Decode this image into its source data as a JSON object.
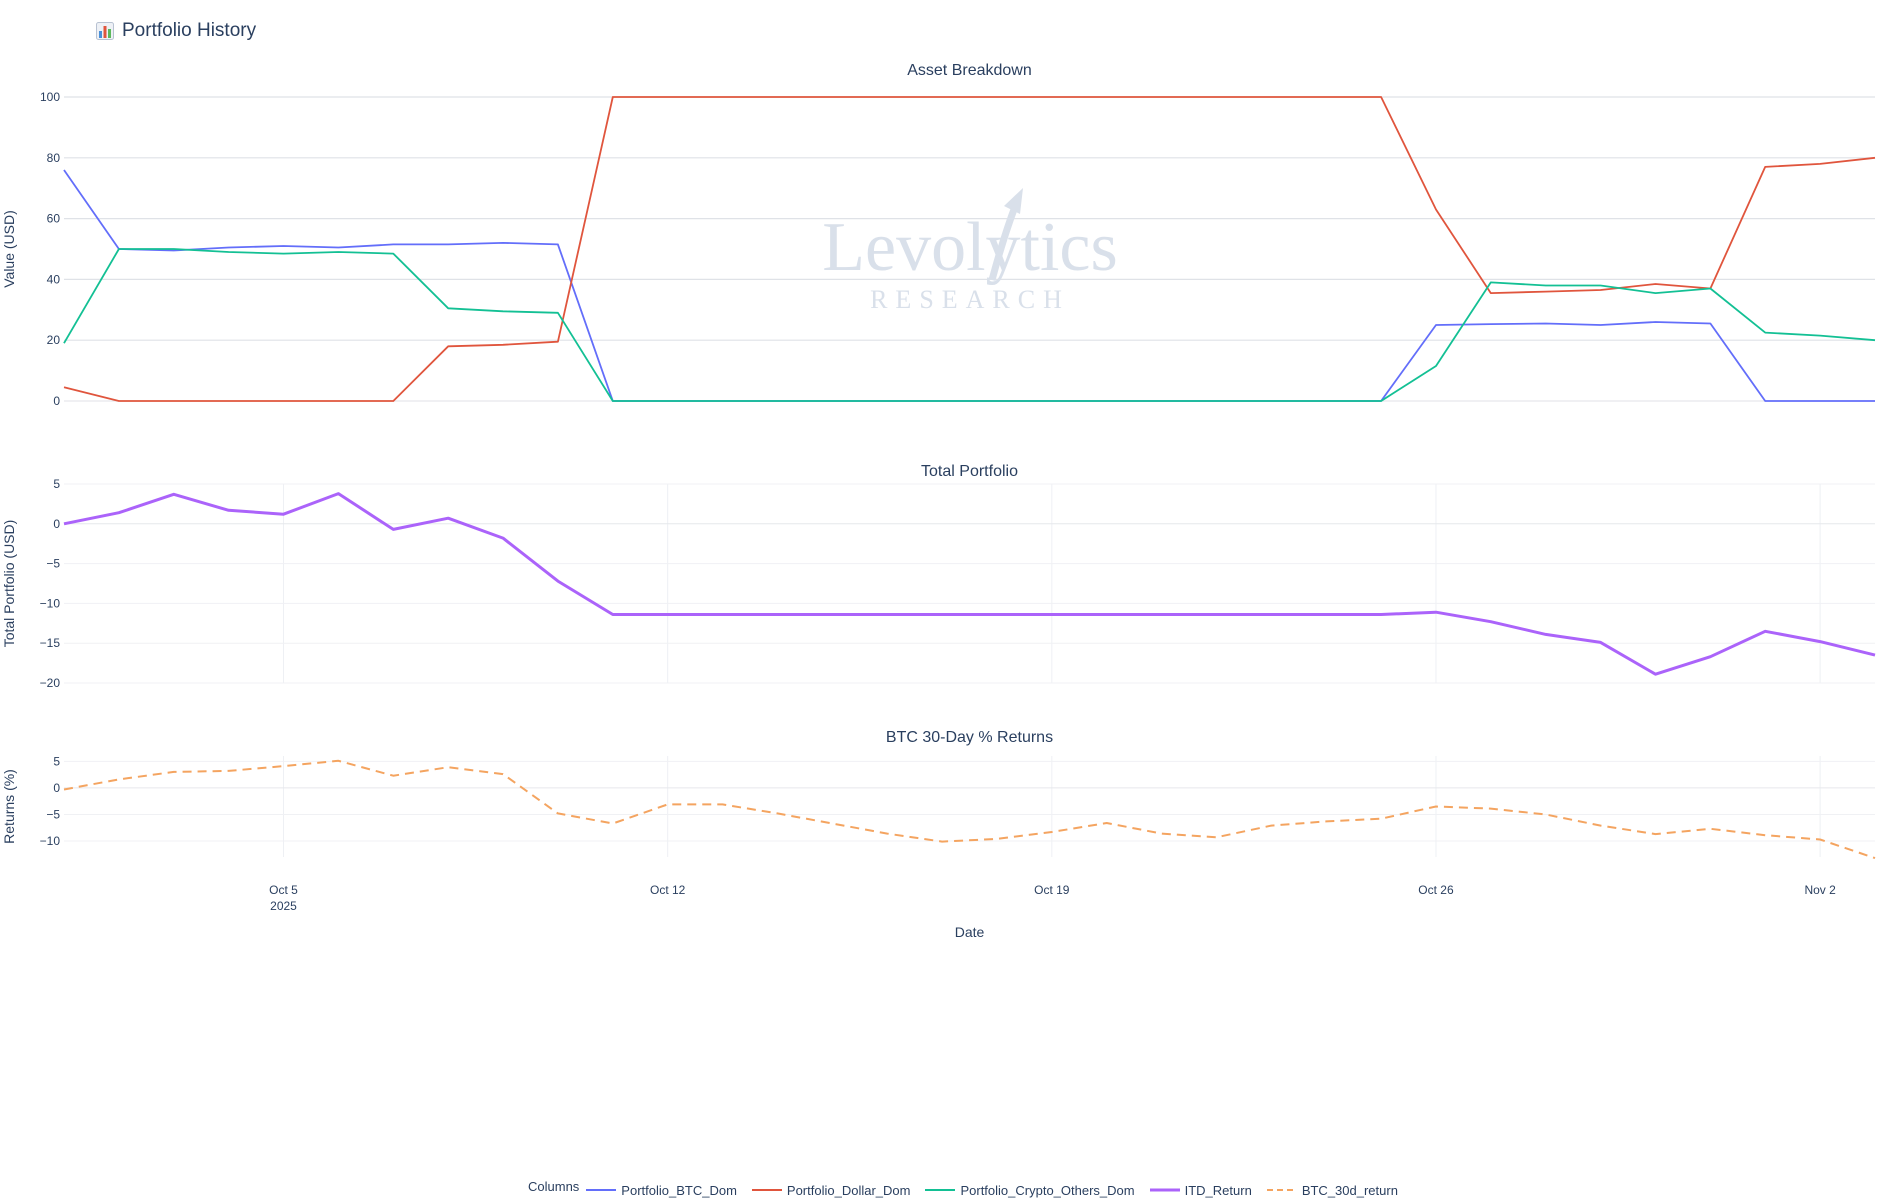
{
  "page": {
    "title": "Portfolio History",
    "icon": "bar-chart-icon"
  },
  "watermark": {
    "name": "Levolytics",
    "tagline": "RESEARCH"
  },
  "legend": {
    "title": "Columns"
  },
  "colors": {
    "Portfolio_BTC_Dom": "#636efa",
    "Portfolio_Dollar_Dom": "#e0553d",
    "Portfolio_Crypto_Others_Dom": "#13c094",
    "ITD_Return": "#ab63fa",
    "BTC_30d_return": "#f4a460"
  },
  "chart_data": [
    {
      "type": "line",
      "title": "Asset Breakdown",
      "ylabel": "Value (USD)",
      "ylim": [
        0,
        100
      ],
      "yticks": [
        0,
        20,
        40,
        60,
        80,
        100
      ],
      "x": [
        "2025-10-01",
        "2025-10-02",
        "2025-10-03",
        "2025-10-04",
        "2025-10-05",
        "2025-10-06",
        "2025-10-07",
        "2025-10-08",
        "2025-10-09",
        "2025-10-10",
        "2025-10-11",
        "2025-10-12",
        "2025-10-13",
        "2025-10-14",
        "2025-10-15",
        "2025-10-16",
        "2025-10-17",
        "2025-10-18",
        "2025-10-19",
        "2025-10-20",
        "2025-10-21",
        "2025-10-22",
        "2025-10-23",
        "2025-10-24",
        "2025-10-25",
        "2025-10-26",
        "2025-10-27",
        "2025-10-28",
        "2025-10-29",
        "2025-10-30",
        "2025-10-31",
        "2025-11-01",
        "2025-11-02",
        "2025-11-03"
      ],
      "series": [
        {
          "name": "Portfolio_BTC_Dom",
          "dash": "solid",
          "width": 1.8,
          "values": [
            76,
            50,
            49.5,
            50.5,
            51,
            50.5,
            51.5,
            51.5,
            52,
            51.5,
            0,
            0,
            0,
            0,
            0,
            0,
            0,
            0,
            0,
            0,
            0,
            0,
            0,
            0,
            0,
            25,
            25.3,
            25.5,
            25,
            26,
            25.5,
            0,
            0,
            0
          ]
        },
        {
          "name": "Portfolio_Dollar_Dom",
          "dash": "solid",
          "width": 1.8,
          "values": [
            4.5,
            0,
            0,
            0,
            0,
            0,
            0,
            18,
            18.5,
            19.5,
            100,
            100,
            100,
            100,
            100,
            100,
            100,
            100,
            100,
            100,
            100,
            100,
            100,
            100,
            100,
            63,
            35.5,
            36,
            36.5,
            38.5,
            37,
            77,
            78,
            80
          ]
        },
        {
          "name": "Portfolio_Crypto_Others_Dom",
          "dash": "solid",
          "width": 1.8,
          "values": [
            19,
            50,
            50,
            49,
            48.5,
            49,
            48.5,
            30.5,
            29.5,
            29,
            0,
            0,
            0,
            0,
            0,
            0,
            0,
            0,
            0,
            0,
            0,
            0,
            0,
            0,
            0,
            11.5,
            39,
            38,
            38,
            35.5,
            37,
            22.5,
            21.5,
            20
          ]
        }
      ]
    },
    {
      "type": "line",
      "title": "Total Portfolio",
      "ylabel": "Total Portfolio (USD)",
      "ylim": [
        -20,
        5
      ],
      "yticks": [
        -20,
        -15,
        -10,
        -5,
        0,
        5
      ],
      "x": [
        "2025-10-01",
        "2025-10-02",
        "2025-10-03",
        "2025-10-04",
        "2025-10-05",
        "2025-10-06",
        "2025-10-07",
        "2025-10-08",
        "2025-10-09",
        "2025-10-10",
        "2025-10-11",
        "2025-10-12",
        "2025-10-13",
        "2025-10-14",
        "2025-10-15",
        "2025-10-16",
        "2025-10-17",
        "2025-10-18",
        "2025-10-19",
        "2025-10-20",
        "2025-10-21",
        "2025-10-22",
        "2025-10-23",
        "2025-10-24",
        "2025-10-25",
        "2025-10-26",
        "2025-10-27",
        "2025-10-28",
        "2025-10-29",
        "2025-10-30",
        "2025-10-31",
        "2025-11-01",
        "2025-11-02",
        "2025-11-03"
      ],
      "series": [
        {
          "name": "ITD_Return",
          "dash": "solid",
          "width": 3,
          "values": [
            0,
            1.4,
            3.7,
            1.7,
            1.2,
            3.8,
            -0.7,
            0.7,
            -1.8,
            -7.2,
            -11.4,
            -11.4,
            -11.4,
            -11.4,
            -11.4,
            -11.4,
            -11.4,
            -11.4,
            -11.4,
            -11.4,
            -11.4,
            -11.4,
            -11.4,
            -11.4,
            -11.4,
            -11.1,
            -12.3,
            -13.9,
            -14.9,
            -18.9,
            -16.7,
            -13.5,
            -14.8,
            -16.5
          ]
        }
      ]
    },
    {
      "type": "line",
      "title": "BTC 30-Day % Returns",
      "ylabel": "Returns (%)",
      "xlabel": "Date",
      "ylim": [
        -13,
        6
      ],
      "yticks": [
        -10,
        -5,
        0,
        5
      ],
      "x": [
        "2025-10-01",
        "2025-10-02",
        "2025-10-03",
        "2025-10-04",
        "2025-10-05",
        "2025-10-06",
        "2025-10-07",
        "2025-10-08",
        "2025-10-09",
        "2025-10-10",
        "2025-10-11",
        "2025-10-12",
        "2025-10-13",
        "2025-10-14",
        "2025-10-15",
        "2025-10-16",
        "2025-10-17",
        "2025-10-18",
        "2025-10-19",
        "2025-10-20",
        "2025-10-21",
        "2025-10-22",
        "2025-10-23",
        "2025-10-24",
        "2025-10-25",
        "2025-10-26",
        "2025-10-27",
        "2025-10-28",
        "2025-10-29",
        "2025-10-30",
        "2025-10-31",
        "2025-11-01",
        "2025-11-02",
        "2025-11-03"
      ],
      "xticks": [
        {
          "date": "2025-10-05",
          "label": "Oct 5",
          "sublabel": "2025"
        },
        {
          "date": "2025-10-12",
          "label": "Oct 12",
          "sublabel": ""
        },
        {
          "date": "2025-10-19",
          "label": "Oct 19",
          "sublabel": ""
        },
        {
          "date": "2025-10-26",
          "label": "Oct 26",
          "sublabel": ""
        },
        {
          "date": "2025-11-02",
          "label": "Nov 2",
          "sublabel": ""
        }
      ],
      "series": [
        {
          "name": "BTC_30d_return",
          "dash": "dash",
          "width": 2,
          "values": [
            -0.3,
            1.6,
            3,
            3.2,
            4.1,
            5.1,
            2.3,
            3.9,
            2.6,
            -4.8,
            -6.7,
            -3.1,
            -3.1,
            -4.8,
            -6.7,
            -8.6,
            -10.1,
            -9.6,
            -8.3,
            -6.6,
            -8.6,
            -9.3,
            -7.1,
            -6.3,
            -5.8,
            -3.5,
            -3.9,
            -5,
            -7.1,
            -8.7,
            -7.7,
            -8.9,
            -9.7,
            -13.2
          ]
        }
      ]
    }
  ]
}
